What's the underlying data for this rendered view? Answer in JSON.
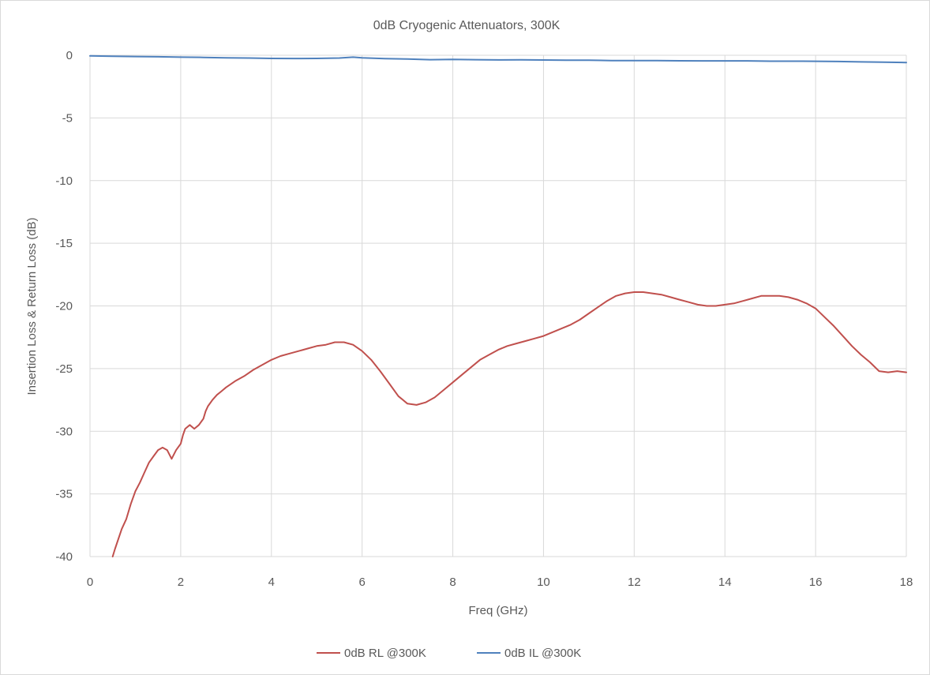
{
  "chart_data": {
    "type": "line",
    "title": "0dB Cryogenic Attenuators, 300K",
    "xlabel": "Freq (GHz)",
    "ylabel": "Insertion Loss & Return Loss (dB)",
    "xlim": [
      0,
      18
    ],
    "ylim": [
      -40,
      0
    ],
    "x_ticks": [
      0,
      2,
      4,
      6,
      8,
      10,
      12,
      14,
      16,
      18
    ],
    "y_ticks": [
      0,
      -5,
      -10,
      -15,
      -20,
      -25,
      -30,
      -35,
      -40
    ],
    "grid": true,
    "legend_position": "bottom",
    "series": [
      {
        "name": "0dB RL @300K",
        "color": "#c0504d",
        "x": [
          0.5,
          0.55,
          0.7,
          0.8,
          0.9,
          1.0,
          1.1,
          1.2,
          1.3,
          1.4,
          1.5,
          1.6,
          1.7,
          1.8,
          1.9,
          2.0,
          2.05,
          2.1,
          2.2,
          2.3,
          2.4,
          2.5,
          2.55,
          2.6,
          2.7,
          2.8,
          2.9,
          3.0,
          3.2,
          3.4,
          3.6,
          3.8,
          4.0,
          4.2,
          4.4,
          4.6,
          4.8,
          5.0,
          5.2,
          5.4,
          5.6,
          5.8,
          6.0,
          6.2,
          6.4,
          6.6,
          6.8,
          7.0,
          7.2,
          7.4,
          7.6,
          7.8,
          8.0,
          8.2,
          8.4,
          8.6,
          8.8,
          9.0,
          9.2,
          9.4,
          9.6,
          9.8,
          10.0,
          10.2,
          10.4,
          10.6,
          10.8,
          11.0,
          11.2,
          11.4,
          11.6,
          11.8,
          12.0,
          12.2,
          12.4,
          12.6,
          12.8,
          13.0,
          13.2,
          13.4,
          13.6,
          13.8,
          14.0,
          14.2,
          14.4,
          14.6,
          14.8,
          15.0,
          15.2,
          15.4,
          15.6,
          15.8,
          16.0,
          16.2,
          16.4,
          16.6,
          16.8,
          17.0,
          17.2,
          17.4,
          17.6,
          17.8,
          18.0
        ],
        "values": [
          -40.0,
          -39.4,
          -37.8,
          -37.0,
          -35.8,
          -34.8,
          -34.1,
          -33.3,
          -32.5,
          -32.0,
          -31.5,
          -31.3,
          -31.5,
          -32.2,
          -31.5,
          -31.0,
          -30.3,
          -29.8,
          -29.5,
          -29.8,
          -29.5,
          -29.0,
          -28.4,
          -28.0,
          -27.5,
          -27.1,
          -26.8,
          -26.5,
          -26.0,
          -25.6,
          -25.1,
          -24.7,
          -24.3,
          -24.0,
          -23.8,
          -23.6,
          -23.4,
          -23.2,
          -23.1,
          -22.9,
          -22.9,
          -23.1,
          -23.6,
          -24.3,
          -25.2,
          -26.2,
          -27.2,
          -27.8,
          -27.9,
          -27.7,
          -27.3,
          -26.7,
          -26.1,
          -25.5,
          -24.9,
          -24.3,
          -23.9,
          -23.5,
          -23.2,
          -23.0,
          -22.8,
          -22.6,
          -22.4,
          -22.1,
          -21.8,
          -21.5,
          -21.1,
          -20.6,
          -20.1,
          -19.6,
          -19.2,
          -19.0,
          -18.9,
          -18.9,
          -19.0,
          -19.1,
          -19.3,
          -19.5,
          -19.7,
          -19.9,
          -20.0,
          -20.0,
          -19.9,
          -19.8,
          -19.6,
          -19.4,
          -19.2,
          -19.2,
          -19.2,
          -19.3,
          -19.5,
          -19.8,
          -20.2,
          -20.9,
          -21.6,
          -22.4,
          -23.2,
          -23.9,
          -24.5,
          -25.2,
          -25.3,
          -25.2,
          -25.3
        ]
      },
      {
        "name": "0dB IL @300K",
        "color": "#4f81bd",
        "x": [
          0,
          0.5,
          1.0,
          1.5,
          2.0,
          2.5,
          3.0,
          3.5,
          4.0,
          4.5,
          5.0,
          5.5,
          5.8,
          6.0,
          6.5,
          7.0,
          7.5,
          8.0,
          8.5,
          9.0,
          9.5,
          10.0,
          10.5,
          11.0,
          11.5,
          12.0,
          12.5,
          13.0,
          13.5,
          14.0,
          14.5,
          15.0,
          15.5,
          16.0,
          16.5,
          17.0,
          17.5,
          18.0
        ],
        "values": [
          -0.05,
          -0.08,
          -0.1,
          -0.12,
          -0.15,
          -0.17,
          -0.2,
          -0.22,
          -0.25,
          -0.26,
          -0.25,
          -0.22,
          -0.15,
          -0.2,
          -0.27,
          -0.3,
          -0.35,
          -0.33,
          -0.35,
          -0.37,
          -0.36,
          -0.38,
          -0.39,
          -0.4,
          -0.42,
          -0.42,
          -0.43,
          -0.44,
          -0.45,
          -0.45,
          -0.45,
          -0.47,
          -0.47,
          -0.48,
          -0.5,
          -0.53,
          -0.55,
          -0.58
        ]
      }
    ]
  }
}
